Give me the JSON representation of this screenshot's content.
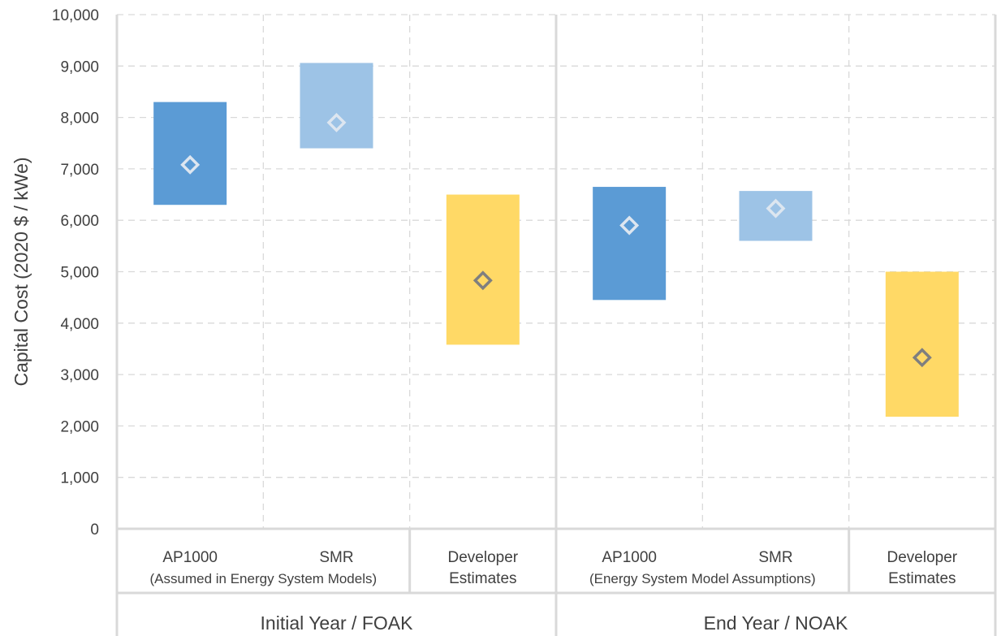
{
  "chart_data": {
    "type": "floating-bar",
    "ylabel": "Capital Cost (2020 $ / kWe)",
    "ylim": [
      0,
      10000
    ],
    "yticks": [
      {
        "value": 0,
        "label": "0"
      },
      {
        "value": 1000,
        "label": "1,000"
      },
      {
        "value": 2000,
        "label": "2,000"
      },
      {
        "value": 3000,
        "label": "3,000"
      },
      {
        "value": 4000,
        "label": "4,000"
      },
      {
        "value": 5000,
        "label": "5,000"
      },
      {
        "value": 6000,
        "label": "6,000"
      },
      {
        "value": 7000,
        "label": "7,000"
      },
      {
        "value": 8000,
        "label": "8,000"
      },
      {
        "value": 9000,
        "label": "9,000"
      },
      {
        "value": 10000,
        "label": "10,000"
      }
    ],
    "grid": "dashed-horizontal-and-vertical",
    "groups": [
      {
        "label": "Initial Year / FOAK",
        "categories": [
          {
            "label": "AP1000",
            "sublabel": "(Assumed in Energy System Models)",
            "low": 6300,
            "high": 8300,
            "marker": 7080,
            "color": "#5b9bd5"
          },
          {
            "label": "SMR",
            "sublabel": "",
            "low": 7400,
            "high": 9060,
            "marker": 7900,
            "color": "#9dc3e6"
          },
          {
            "label": "Developer",
            "sublabel": "Estimates",
            "low": 3580,
            "high": 6500,
            "marker": 4830,
            "color": "#ffd966"
          }
        ]
      },
      {
        "label": "End Year / NOAK",
        "categories": [
          {
            "label": "AP1000",
            "sublabel": "(Energy System Model Assumptions)",
            "low": 4450,
            "high": 6650,
            "marker": 5900,
            "color": "#5b9bd5"
          },
          {
            "label": "SMR",
            "sublabel": "",
            "low": 5600,
            "high": 6570,
            "marker": 6230,
            "color": "#9dc3e6"
          },
          {
            "label": "Developer",
            "sublabel": "Estimates",
            "low": 2180,
            "high": 5000,
            "marker": 3330,
            "color": "#ffd966"
          }
        ]
      }
    ],
    "marker_colors": {
      "blue": "#dde6f0",
      "yellow": "#7f7f7f"
    }
  }
}
